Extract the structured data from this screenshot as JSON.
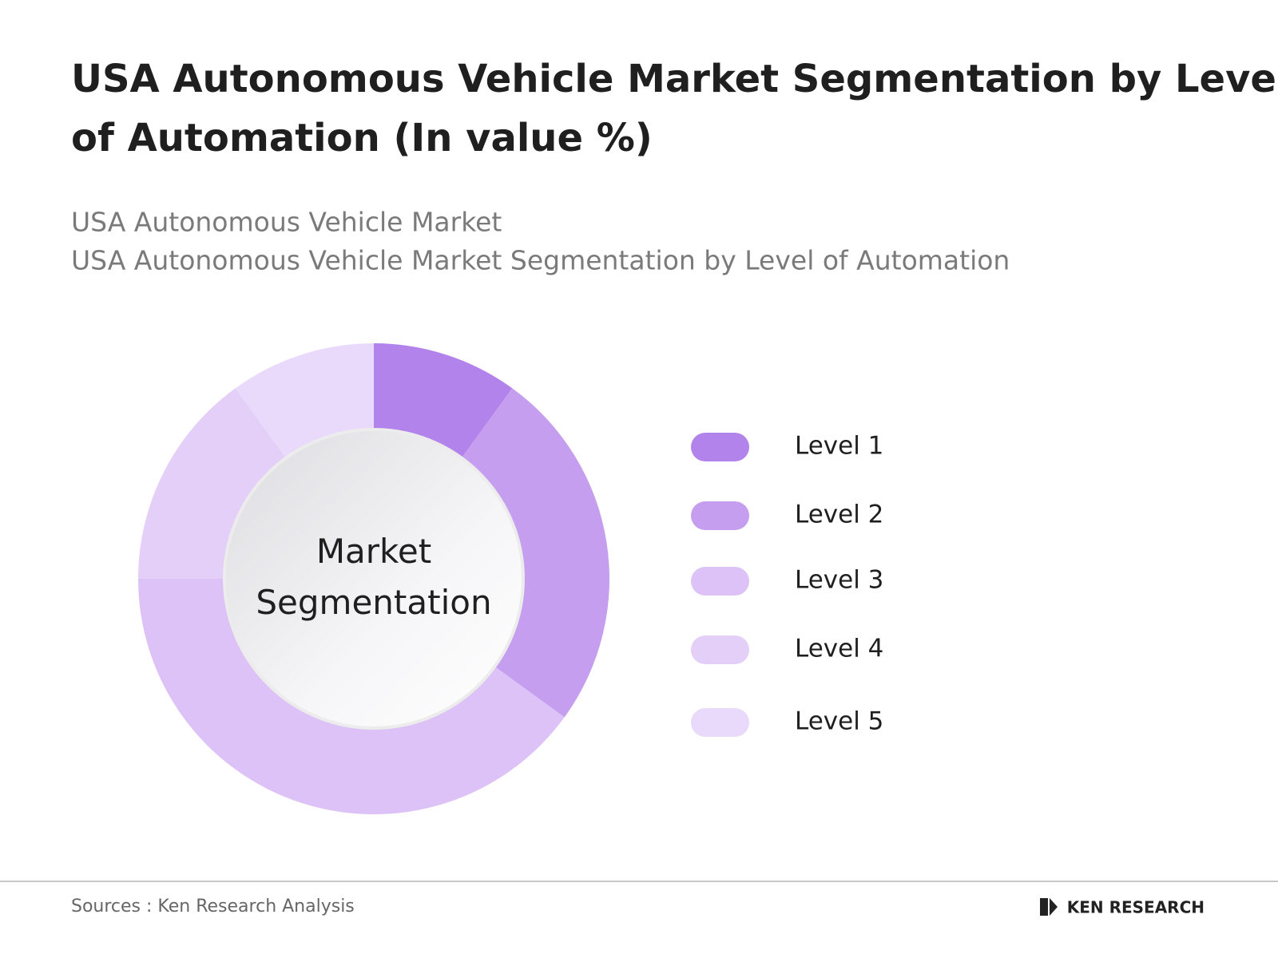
{
  "chart_data": {
    "type": "pie",
    "title": "USA Autonomous Vehicle Market Segmentation by Level of Automation (In value %)",
    "subtitles": [
      "USA Autonomous Vehicle Market",
      "USA Autonomous Vehicle Market Segmentation by Level of Automation"
    ],
    "center_label": "Market Segmentation",
    "categories": [
      "Level 1",
      "Level 2",
      "Level 3",
      "Level 4",
      "Level 5"
    ],
    "values": [
      10,
      25,
      40,
      15,
      10
    ],
    "colors": [
      "#b283ea",
      "#c59ef0",
      "#dcc2f7",
      "#e3cff8",
      "#e9dafb"
    ],
    "source": "Sources : Ken Research Analysis",
    "logo": "KEN RESEARCH"
  }
}
